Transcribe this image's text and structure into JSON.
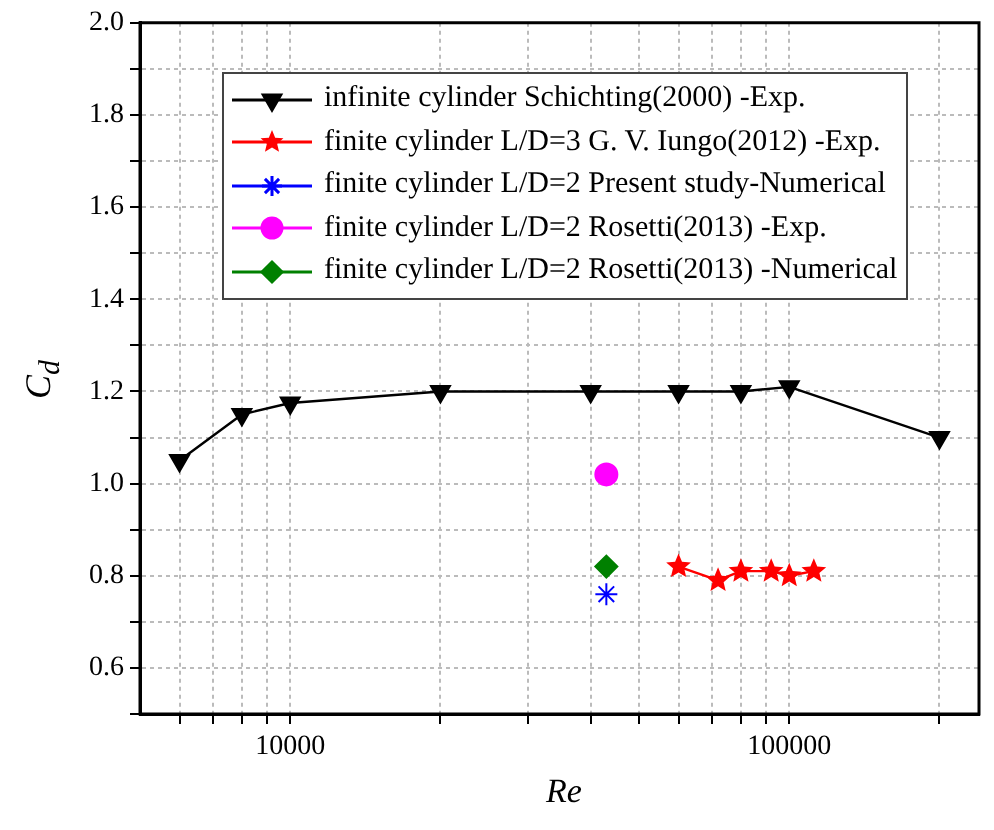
{
  "chart_data": {
    "type": "line",
    "xlabel": "Re",
    "ylabel": "C$_{d}$",
    "log": "x",
    "xlim": [
      5000,
      240000
    ],
    "xticks": [
      {
        "value": 6000,
        "label": null
      },
      {
        "value": 7000,
        "label": null
      },
      {
        "value": 8000,
        "label": null
      },
      {
        "value": 9000,
        "label": null
      },
      10000,
      {
        "value": 20000,
        "label": null
      },
      {
        "value": 30000,
        "label": null
      },
      {
        "value": 40000,
        "label": null
      },
      {
        "value": 50000,
        "label": null
      },
      {
        "value": 60000,
        "label": null
      },
      {
        "value": 70000,
        "label": null
      },
      {
        "value": 80000,
        "label": null
      },
      {
        "value": 90000,
        "label": null
      },
      100000,
      {
        "value": 200000,
        "label": null
      }
    ],
    "ylim": [
      0.5,
      2.0
    ],
    "yticks": [
      {
        "value": 0.5,
        "label": null
      },
      0.6,
      {
        "value": 0.7,
        "label": null
      },
      0.8,
      {
        "value": 0.9,
        "label": null
      },
      {
        "value": 1.0,
        "label": "1.0"
      },
      {
        "value": 1.1,
        "label": null
      },
      1.2,
      {
        "value": 1.3,
        "label": null
      },
      1.4,
      {
        "value": 1.5,
        "label": null
      },
      1.6,
      {
        "value": 1.7,
        "label": null
      },
      1.8,
      {
        "value": 1.9,
        "label": null
      },
      {
        "value": 2.0,
        "label": "2.0"
      }
    ],
    "grid": true,
    "legend": "top",
    "line_style": "solid",
    "series": [
      {
        "name": "infinite cylinder Schichting(2000) -Exp.",
        "color": "#000000",
        "marker": "triangle",
        "x": [
          6000,
          8000,
          10000,
          20000,
          40000,
          60000,
          80000,
          100000,
          200000
        ],
        "values": [
          1.05,
          1.15,
          1.175,
          1.2,
          1.2,
          1.2,
          1.2,
          1.21,
          1.1
        ]
      },
      {
        "name": "finite cylinder L/D=3 G. V. Iungo(2012) -Exp.",
        "color": "#ff0000",
        "marker": "star",
        "x": [
          60000,
          72000,
          80000,
          92000,
          100000,
          112000
        ],
        "values": [
          0.82,
          0.79,
          0.81,
          0.81,
          0.8,
          0.81
        ]
      },
      {
        "name": "finite cylinder L/D=2 Present study-Numerical",
        "color": "#0000ff",
        "marker": "cross",
        "x": [
          43000
        ],
        "values": [
          0.76
        ]
      },
      {
        "name": "finite cylinder L/D=2 Rosetti(2013) -Exp.",
        "color": "#ff00ff",
        "marker": "circle",
        "x": [
          43000
        ],
        "values": [
          1.02
        ]
      },
      {
        "name": "finite cylinder L/D=2 Rosetti(2013) -Numerical",
        "color": "#008000",
        "marker": "diamond",
        "x": [
          43000
        ],
        "values": [
          0.82
        ]
      }
    ]
  }
}
